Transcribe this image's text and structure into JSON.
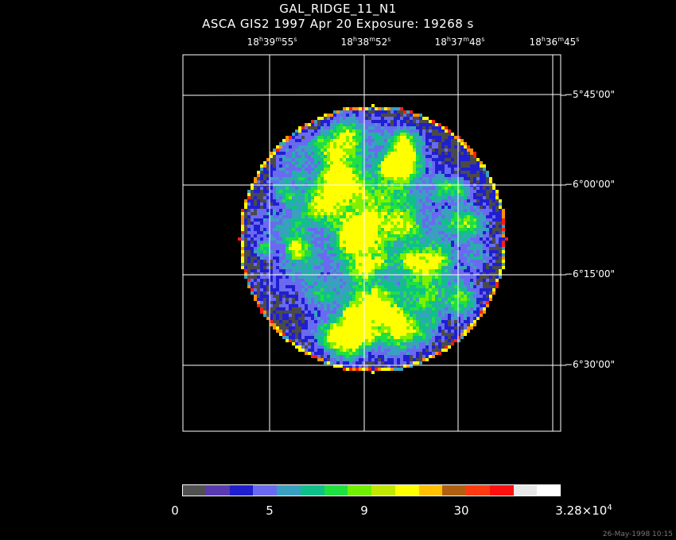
{
  "title_line1": "GAL_RIDGE_11_N1",
  "title_line2": "ASCA GIS2   1997 Apr 20    Exposure: 19268 s",
  "ra_labels": [
    {
      "h": "18",
      "m": "39",
      "s": "55"
    },
    {
      "h": "18",
      "m": "38",
      "s": "52"
    },
    {
      "h": "18",
      "m": "37",
      "s": "48"
    },
    {
      "h": "18",
      "m": "36",
      "s": "45"
    }
  ],
  "dec_labels": [
    "−5°45'00\"",
    "−6°00'00\"",
    "−6°15'00\"",
    "−6°30'00\""
  ],
  "colorbar": {
    "colors": [
      "#505050",
      "#5a3ab0",
      "#1f1fd0",
      "#6a6af0",
      "#3aa0c0",
      "#10c08a",
      "#20e040",
      "#70f000",
      "#c0e800",
      "#ffff00",
      "#ffc000",
      "#b06010",
      "#ff3a10",
      "#ff1010",
      "#e8e8e8",
      "#ffffff"
    ],
    "labels": [
      "0",
      "5",
      "9",
      "30"
    ],
    "max_base": "3.28×10",
    "max_exp": "4"
  },
  "map_colors": {
    "dark": "#4a4a4a",
    "purple": "#5a3ab0",
    "blue": "#1f1fd0",
    "lightblue": "#6a6af0",
    "cyan": "#3aa0c0",
    "teal": "#10c08a",
    "green": "#20e040",
    "lime": "#80f000",
    "yellow": "#ffff00",
    "orange": "#ff9000",
    "red": "#ff2010"
  },
  "timestamp": "26-May-1998 10:15"
}
